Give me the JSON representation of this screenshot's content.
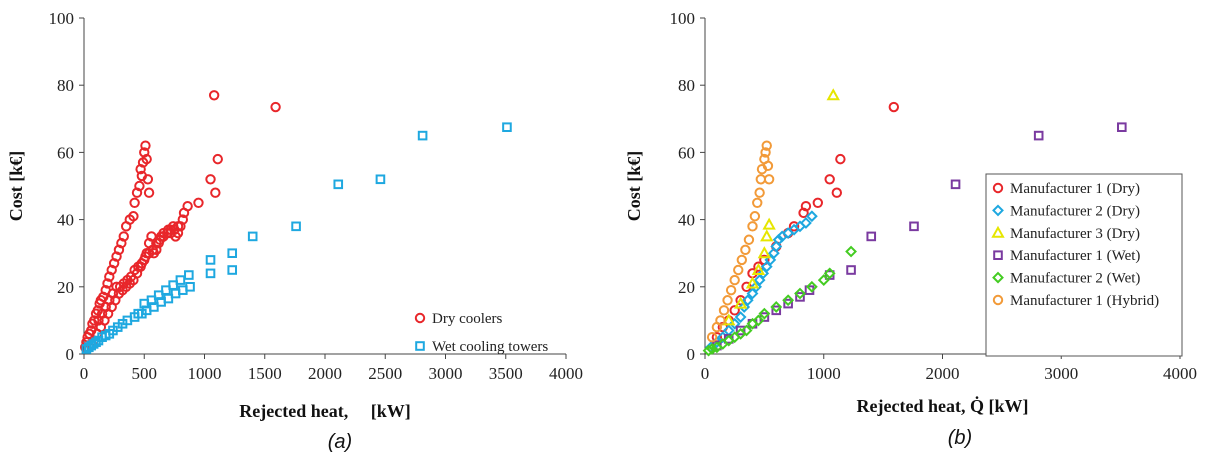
{
  "colors": {
    "red": "#e8262a",
    "cyan": "#1ea8e0",
    "yellow": "#e6e600",
    "purple": "#7a3aa0",
    "green": "#44cc22",
    "orange": "#f29a38"
  },
  "chart_data": [
    {
      "type": "scatter",
      "caption": "(a)",
      "xlabel": "Rejected heat,     [kW]",
      "ylabel": "Cost [k€]",
      "xlim": [
        0,
        4000
      ],
      "ylim": [
        0,
        100
      ],
      "xticks": [
        "0",
        "500",
        "1000",
        "1500",
        "2000",
        "2500",
        "3000",
        "3500",
        "4000"
      ],
      "yticks": [
        "0",
        "20",
        "40",
        "60",
        "80",
        "100"
      ],
      "grid": false,
      "legend": "bottom-right",
      "series": [
        {
          "name": "Dry coolers",
          "marker": "circle",
          "color": "#e8262a",
          "points": [
            [
              10,
              2
            ],
            [
              20,
              3.5
            ],
            [
              30,
              5
            ],
            [
              45,
              6
            ],
            [
              60,
              7
            ],
            [
              70,
              9
            ],
            [
              85,
              10
            ],
            [
              100,
              12
            ],
            [
              115,
              13
            ],
            [
              130,
              15
            ],
            [
              140,
              16
            ],
            [
              160,
              17
            ],
            [
              180,
              19
            ],
            [
              195,
              21
            ],
            [
              210,
              23
            ],
            [
              230,
              25
            ],
            [
              250,
              27
            ],
            [
              270,
              29
            ],
            [
              290,
              31
            ],
            [
              310,
              33
            ],
            [
              330,
              35
            ],
            [
              350,
              38
            ],
            [
              380,
              40
            ],
            [
              410,
              41
            ],
            [
              420,
              45
            ],
            [
              440,
              48
            ],
            [
              460,
              50
            ],
            [
              470,
              55
            ],
            [
              480,
              53
            ],
            [
              490,
              57
            ],
            [
              500,
              60
            ],
            [
              510,
              62
            ],
            [
              520,
              58
            ],
            [
              530,
              52
            ],
            [
              540,
              48
            ],
            [
              80,
              4
            ],
            [
              110,
              6
            ],
            [
              140,
              8
            ],
            [
              170,
              10
            ],
            [
              200,
              12
            ],
            [
              230,
              14
            ],
            [
              260,
              16
            ],
            [
              290,
              18
            ],
            [
              320,
              19
            ],
            [
              350,
              20
            ],
            [
              380,
              21
            ],
            [
              410,
              22
            ],
            [
              440,
              24
            ],
            [
              470,
              26
            ],
            [
              500,
              28
            ],
            [
              520,
              30
            ],
            [
              540,
              33
            ],
            [
              560,
              35
            ],
            [
              580,
              30
            ],
            [
              600,
              31
            ],
            [
              620,
              33
            ],
            [
              640,
              35
            ],
            [
              660,
              36
            ],
            [
              700,
              37
            ],
            [
              720,
              36
            ],
            [
              740,
              38
            ],
            [
              760,
              35
            ],
            [
              780,
              36
            ],
            [
              800,
              38
            ],
            [
              830,
              42
            ],
            [
              860,
              44
            ],
            [
              950,
              45
            ],
            [
              1050,
              52
            ],
            [
              1090,
              48
            ],
            [
              1110,
              58
            ],
            [
              1080,
              77
            ],
            [
              1590,
              73.5
            ],
            [
              120,
              10
            ],
            [
              150,
              12
            ],
            [
              180,
              14
            ],
            [
              210,
              16
            ],
            [
              240,
              18
            ],
            [
              270,
              20
            ],
            [
              300,
              20
            ],
            [
              330,
              21
            ],
            [
              360,
              22
            ],
            [
              390,
              23
            ],
            [
              420,
              25
            ],
            [
              450,
              26
            ],
            [
              480,
              27
            ],
            [
              510,
              29
            ],
            [
              540,
              30
            ],
            [
              570,
              31
            ],
            [
              600,
              33
            ],
            [
              630,
              34
            ],
            [
              660,
              35
            ],
            [
              690,
              36
            ],
            [
              720,
              37
            ],
            [
              750,
              37
            ],
            [
              780,
              38
            ],
            [
              820,
              40
            ]
          ]
        },
        {
          "name": "Wet cooling towers",
          "marker": "square",
          "color": "#1ea8e0",
          "points": [
            [
              20,
              1.5
            ],
            [
              40,
              2
            ],
            [
              60,
              2.5
            ],
            [
              80,
              3
            ],
            [
              100,
              3.5
            ],
            [
              120,
              4
            ],
            [
              150,
              5
            ],
            [
              180,
              5.5
            ],
            [
              210,
              6
            ],
            [
              240,
              7
            ],
            [
              280,
              8
            ],
            [
              320,
              9
            ],
            [
              360,
              10
            ],
            [
              420,
              11
            ],
            [
              480,
              12
            ],
            [
              520,
              13
            ],
            [
              580,
              14
            ],
            [
              640,
              15.5
            ],
            [
              700,
              16.5
            ],
            [
              760,
              18
            ],
            [
              820,
              19
            ],
            [
              880,
              20
            ],
            [
              450,
              12
            ],
            [
              500,
              15
            ],
            [
              560,
              16
            ],
            [
              620,
              17.5
            ],
            [
              680,
              19
            ],
            [
              740,
              20.5
            ],
            [
              800,
              22
            ],
            [
              870,
              23.5
            ],
            [
              1050,
              24
            ],
            [
              1050,
              28
            ],
            [
              1230,
              25
            ],
            [
              1230,
              30
            ],
            [
              1400,
              35
            ],
            [
              1760,
              38
            ],
            [
              2110,
              50.5
            ],
            [
              2460,
              52
            ],
            [
              2810,
              65
            ],
            [
              3510,
              67.5
            ]
          ]
        }
      ]
    },
    {
      "type": "scatter",
      "caption": "(b)",
      "xlabel": "Rejected heat, Q̇ [kW]",
      "ylabel": "Cost [k€]",
      "xlim": [
        0,
        4000
      ],
      "ylim": [
        0,
        100
      ],
      "xticks": [
        "0",
        "1000",
        "2000",
        "3000",
        "4000"
      ],
      "yticks": [
        "0",
        "20",
        "40",
        "60",
        "80",
        "100"
      ],
      "grid": false,
      "legend": "right",
      "series": [
        {
          "name": "Manufacturer 1 (Dry)",
          "marker": "circle",
          "color": "#e8262a",
          "points": [
            [
              100,
              5
            ],
            [
              150,
              8
            ],
            [
              200,
              10
            ],
            [
              250,
              13
            ],
            [
              300,
              16
            ],
            [
              350,
              20
            ],
            [
              400,
              24
            ],
            [
              450,
              26
            ],
            [
              500,
              28
            ],
            [
              600,
              32
            ],
            [
              700,
              36
            ],
            [
              750,
              38
            ],
            [
              830,
              42
            ],
            [
              850,
              44
            ],
            [
              950,
              45
            ],
            [
              1050,
              52
            ],
            [
              1110,
              48
            ],
            [
              1140,
              58
            ],
            [
              1590,
              73.5
            ]
          ]
        },
        {
          "name": "Manufacturer 2 (Dry)",
          "marker": "diamond",
          "color": "#1ea8e0",
          "points": [
            [
              50,
              2
            ],
            [
              100,
              3.5
            ],
            [
              150,
              5
            ],
            [
              200,
              7
            ],
            [
              250,
              9
            ],
            [
              300,
              11
            ],
            [
              330,
              14
            ],
            [
              360,
              16
            ],
            [
              400,
              18
            ],
            [
              430,
              20
            ],
            [
              460,
              22
            ],
            [
              490,
              24
            ],
            [
              520,
              26
            ],
            [
              550,
              28
            ],
            [
              580,
              30
            ],
            [
              600,
              32
            ],
            [
              620,
              34
            ],
            [
              650,
              35
            ],
            [
              700,
              36
            ],
            [
              750,
              37
            ],
            [
              800,
              38
            ],
            [
              850,
              39
            ],
            [
              900,
              41
            ]
          ]
        },
        {
          "name": "Manufacturer 3 (Dry)",
          "marker": "triangle",
          "color": "#e6e600",
          "points": [
            [
              200,
              10
            ],
            [
              300,
              15
            ],
            [
              400,
              21
            ],
            [
              450,
              25
            ],
            [
              500,
              30
            ],
            [
              520,
              35
            ],
            [
              540,
              38.5
            ],
            [
              1080,
              77
            ]
          ]
        },
        {
          "name": "Manufacturer 1 (Wet)",
          "marker": "square",
          "color": "#7a3aa0",
          "points": [
            [
              100,
              2.5
            ],
            [
              200,
              4.5
            ],
            [
              300,
              7
            ],
            [
              400,
              9
            ],
            [
              500,
              11
            ],
            [
              600,
              13
            ],
            [
              700,
              15
            ],
            [
              800,
              17
            ],
            [
              880,
              19
            ],
            [
              1050,
              23.5
            ],
            [
              1230,
              25
            ],
            [
              1400,
              35
            ],
            [
              1760,
              38
            ],
            [
              2110,
              50.5
            ],
            [
              2460,
              52
            ],
            [
              2810,
              65
            ],
            [
              3510,
              67.5
            ]
          ]
        },
        {
          "name": "Manufacturer 2 (Wet)",
          "marker": "diamond",
          "color": "#44cc22",
          "points": [
            [
              30,
              1
            ],
            [
              60,
              1.5
            ],
            [
              100,
              2
            ],
            [
              150,
              3
            ],
            [
              200,
              4
            ],
            [
              250,
              5
            ],
            [
              300,
              6
            ],
            [
              350,
              7
            ],
            [
              400,
              9
            ],
            [
              450,
              10
            ],
            [
              500,
              12
            ],
            [
              600,
              14
            ],
            [
              700,
              16
            ],
            [
              800,
              18
            ],
            [
              900,
              20
            ],
            [
              1000,
              22
            ],
            [
              1050,
              24
            ],
            [
              1230,
              30.5
            ]
          ]
        },
        {
          "name": "Manufacturer 1 (Hybrid)",
          "marker": "circle",
          "color": "#f29a38",
          "points": [
            [
              60,
              5
            ],
            [
              100,
              8
            ],
            [
              130,
              10
            ],
            [
              160,
              13
            ],
            [
              190,
              16
            ],
            [
              220,
              19
            ],
            [
              250,
              22
            ],
            [
              280,
              25
            ],
            [
              310,
              28
            ],
            [
              340,
              31
            ],
            [
              370,
              34
            ],
            [
              400,
              38
            ],
            [
              420,
              41
            ],
            [
              440,
              45
            ],
            [
              460,
              48
            ],
            [
              470,
              52
            ],
            [
              480,
              55
            ],
            [
              500,
              58
            ],
            [
              510,
              60
            ],
            [
              520,
              62
            ],
            [
              530,
              56
            ],
            [
              540,
              52
            ]
          ]
        }
      ]
    }
  ]
}
